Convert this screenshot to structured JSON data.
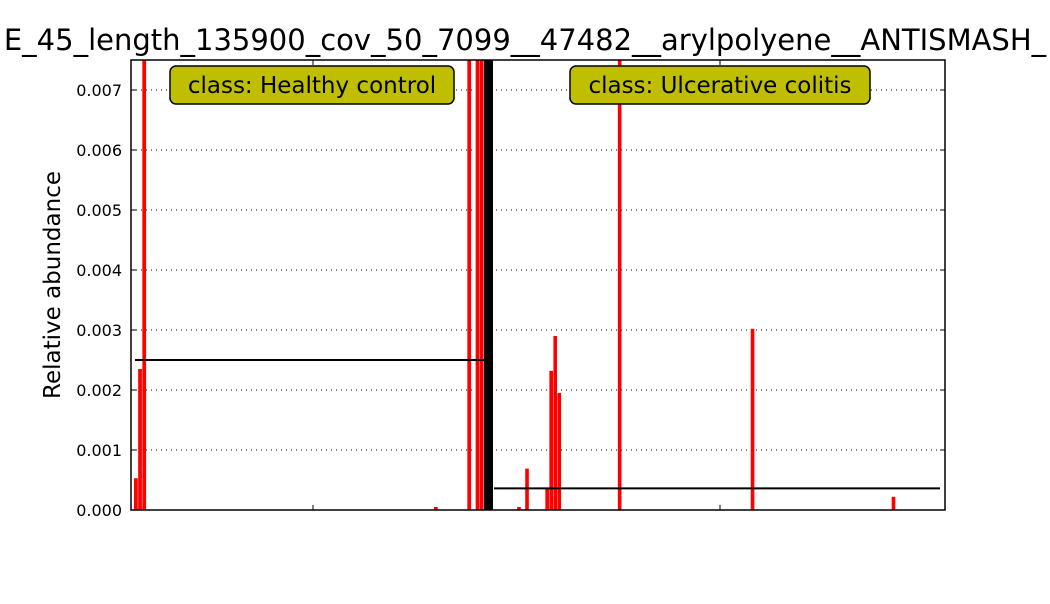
{
  "chart_data": {
    "type": "bar",
    "title": "E_45_length_135900_cov_50_7099__47482__arylpolyene__ANTISMASH_",
    "ylabel": "Relative abundance",
    "xlabel": "",
    "ylim": [
      0,
      0.0075
    ],
    "grid": "horizontal-dotted",
    "yticks": [
      "0.000",
      "0.001",
      "0.002",
      "0.003",
      "0.004",
      "0.005",
      "0.006",
      "0.007"
    ],
    "ytick_values": [
      0,
      0.001,
      0.002,
      0.003,
      0.004,
      0.005,
      0.006,
      0.007
    ],
    "bar_color": "#ff0000",
    "box_color": "#bfbf00",
    "groups": [
      {
        "label": "class: Healthy control",
        "mean": 0.0025,
        "values": [
          0.00053,
          0.00235,
          0.0075,
          0,
          0,
          0,
          0,
          0,
          0,
          0,
          0,
          0,
          0,
          0,
          0,
          0,
          0,
          0,
          0,
          0,
          0,
          0,
          0,
          0,
          0,
          0,
          0,
          0,
          0,
          0,
          0,
          0,
          0,
          0,
          0,
          0,
          0,
          0,
          0,
          0,
          0,
          0,
          0,
          0,
          0,
          0,
          0,
          0,
          0,
          0,
          0,
          0,
          0,
          0,
          0,
          0,
          0,
          0,
          0,
          0,
          0,
          0,
          0,
          0,
          0,
          0,
          0,
          0,
          0,
          0,
          0,
          0,
          5e-05,
          0,
          0,
          0,
          0,
          0,
          0,
          0,
          0.0075,
          0,
          0.0075,
          0.0075
        ]
      },
      {
        "label": "class: Ulcerative colitis",
        "mean": 0.00036,
        "values": [
          0,
          0,
          0,
          0,
          0,
          0,
          5e-05,
          0,
          0.00069,
          0,
          0,
          0,
          0,
          0.00035,
          0.00232,
          0.0029,
          0.00195,
          0,
          0,
          0,
          0,
          0,
          0,
          0,
          0,
          0,
          0,
          0,
          0,
          0,
          0,
          0.0075,
          0,
          0,
          0,
          0,
          0,
          0,
          0,
          0,
          0,
          0,
          0,
          0,
          0,
          0,
          0,
          0,
          0,
          0,
          0,
          0,
          0,
          0,
          0,
          0,
          0,
          0,
          0,
          0,
          0,
          0,
          0,
          0,
          0.00302,
          0,
          0,
          0,
          0,
          0,
          0,
          0,
          0,
          0,
          0,
          0,
          0,
          0,
          0,
          0,
          0,
          0,
          0,
          0,
          0,
          0,
          0,
          0,
          0,
          0,
          0,
          0,
          0,
          0,
          0,
          0,
          0,
          0,
          0,
          0.00022,
          0,
          0,
          0,
          0,
          0,
          0,
          0,
          0,
          0,
          0,
          0
        ]
      }
    ]
  }
}
